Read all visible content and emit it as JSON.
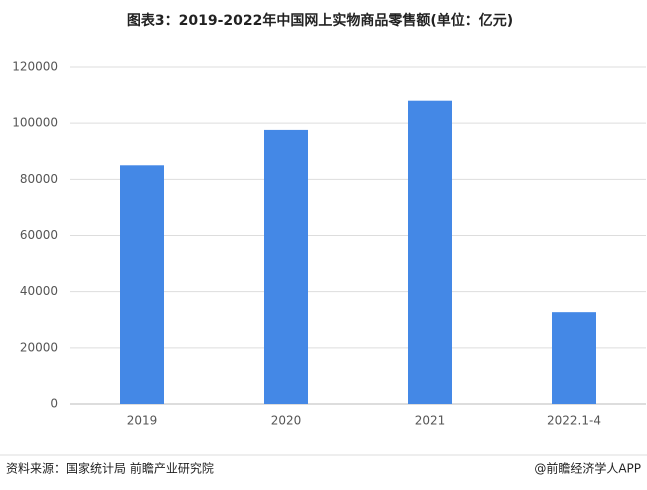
{
  "chart_data": {
    "type": "bar",
    "title": "图表3：2019-2022年中国网上实物商品零售额(单位：亿元)",
    "categories": [
      "2019",
      "2020",
      "2021",
      "2022.1-4"
    ],
    "values": [
      85000,
      97600,
      108000,
      32700
    ],
    "color": "#4488e6",
    "ylim": [
      0,
      120000
    ],
    "yticks": [
      0,
      20000,
      40000,
      60000,
      80000,
      100000,
      120000
    ],
    "grid": true,
    "source": "资料来源：国家统计局 前瞻产业研究院",
    "credit": "@前瞻经济学人APP"
  }
}
